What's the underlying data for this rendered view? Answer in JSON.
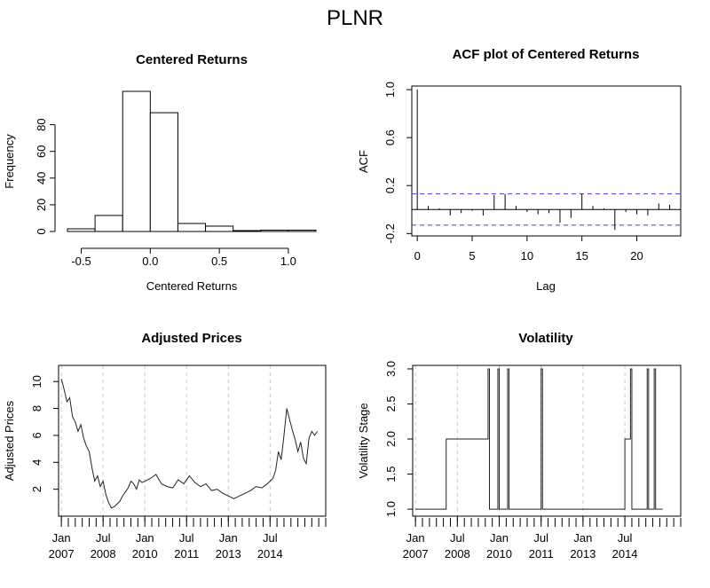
{
  "figure": {
    "title": "PLNR"
  },
  "chart_data": [
    {
      "type": "bar",
      "title": "Centered Returns",
      "xlabel": "Centered Returns",
      "ylabel": "Frequency",
      "xlim": [
        -0.6,
        1.2
      ],
      "ylim": [
        0,
        105
      ],
      "x_ticks": [
        -0.5,
        0.0,
        0.5,
        1.0
      ],
      "x_tick_labels": [
        "-0.5",
        "0.0",
        "0.5",
        "1.0"
      ],
      "y_ticks": [
        0,
        20,
        40,
        60,
        80
      ],
      "y_tick_labels": [
        "0",
        "20",
        "40",
        "60",
        "80"
      ],
      "bins": [
        {
          "x0": -0.6,
          "x1": -0.4,
          "count": 2
        },
        {
          "x0": -0.4,
          "x1": -0.2,
          "count": 12
        },
        {
          "x0": -0.2,
          "x1": 0.0,
          "count": 105
        },
        {
          "x0": 0.0,
          "x1": 0.2,
          "count": 89
        },
        {
          "x0": 0.2,
          "x1": 0.4,
          "count": 6
        },
        {
          "x0": 0.4,
          "x1": 0.6,
          "count": 4
        },
        {
          "x0": 0.6,
          "x1": 0.8,
          "count": 0
        },
        {
          "x0": 0.8,
          "x1": 1.0,
          "count": 1
        },
        {
          "x0": 1.0,
          "x1": 1.2,
          "count": 1
        }
      ]
    },
    {
      "type": "bar",
      "title": "ACF plot of Centered Returns",
      "xlabel": "Lag",
      "ylabel": "ACF",
      "xlim": [
        -0.5,
        24
      ],
      "ylim": [
        -0.22,
        1.03
      ],
      "x_ticks": [
        0,
        5,
        10,
        15,
        20
      ],
      "x_tick_labels": [
        "0",
        "5",
        "10",
        "15",
        "20"
      ],
      "y_ticks": [
        -0.2,
        0.2,
        0.6,
        1.0
      ],
      "y_tick_labels": [
        "-0.2",
        "0.2",
        "0.6",
        "1.0"
      ],
      "confidence_band": [
        -0.13,
        0.13
      ],
      "lags": [
        0,
        1,
        2,
        3,
        4,
        5,
        6,
        7,
        8,
        9,
        10,
        11,
        12,
        13,
        14,
        15,
        16,
        17,
        18,
        19,
        20,
        21,
        22,
        23
      ],
      "values": [
        1.0,
        0.03,
        0.01,
        -0.05,
        -0.03,
        -0.01,
        -0.05,
        0.12,
        0.13,
        0.03,
        -0.02,
        -0.04,
        -0.03,
        -0.11,
        -0.07,
        0.13,
        0.03,
        0.01,
        -0.17,
        -0.02,
        -0.04,
        -0.05,
        0.05,
        0.04
      ]
    },
    {
      "type": "line",
      "title": "Adjusted Prices",
      "xlabel": "",
      "ylabel": "Adjusted Prices",
      "xlim": [
        2006.9,
        2016.5
      ],
      "ylim": [
        0,
        11.2
      ],
      "x_ticks": [
        2007.0,
        2008.5,
        2010.0,
        2011.5,
        2013.0,
        2014.5
      ],
      "x_tick_labels": [
        [
          "Jan",
          "2007"
        ],
        [
          "Jul",
          "2008"
        ],
        [
          "Jan",
          "2010"
        ],
        [
          "Jul",
          "2011"
        ],
        [
          "Jan",
          "2013"
        ],
        [
          "Jul",
          "2014"
        ]
      ],
      "y_ticks": [
        2,
        4,
        6,
        8,
        10
      ],
      "y_tick_labels": [
        "2",
        "4",
        "6",
        "8",
        "10"
      ],
      "grid": "dashed vertical",
      "x": [
        2007.0,
        2007.1,
        2007.2,
        2007.3,
        2007.4,
        2007.5,
        2007.6,
        2007.7,
        2007.8,
        2007.9,
        2008.0,
        2008.1,
        2008.2,
        2008.3,
        2008.4,
        2008.5,
        2008.6,
        2008.7,
        2008.8,
        2008.9,
        2009.0,
        2009.1,
        2009.2,
        2009.3,
        2009.4,
        2009.5,
        2009.6,
        2009.7,
        2009.8,
        2009.9,
        2010.0,
        2010.2,
        2010.4,
        2010.6,
        2010.8,
        2011.0,
        2011.2,
        2011.4,
        2011.6,
        2011.8,
        2012.0,
        2012.2,
        2012.4,
        2012.6,
        2012.8,
        2013.0,
        2013.2,
        2013.4,
        2013.6,
        2013.8,
        2014.0,
        2014.2,
        2014.4,
        2014.6,
        2014.7,
        2014.8,
        2014.9,
        2015.0,
        2015.1,
        2015.2,
        2015.3,
        2015.4,
        2015.5,
        2015.6,
        2015.7,
        2015.8,
        2015.9,
        2016.0,
        2016.1,
        2016.2
      ],
      "y": [
        10.2,
        9.4,
        8.5,
        8.8,
        7.4,
        7.0,
        6.3,
        6.8,
        5.8,
        5.2,
        4.8,
        3.6,
        2.6,
        3.0,
        2.2,
        2.6,
        1.6,
        1.0,
        0.6,
        0.7,
        0.9,
        1.1,
        1.5,
        1.8,
        2.1,
        2.6,
        2.4,
        2.0,
        2.7,
        2.5,
        2.6,
        2.8,
        3.1,
        2.4,
        2.2,
        2.1,
        2.7,
        2.4,
        3.0,
        2.5,
        2.2,
        2.4,
        1.9,
        2.0,
        1.7,
        1.5,
        1.3,
        1.5,
        1.7,
        1.9,
        2.2,
        2.1,
        2.4,
        2.8,
        3.4,
        4.8,
        4.2,
        6.0,
        8.0,
        7.2,
        6.4,
        5.7,
        4.8,
        5.5,
        4.3,
        3.9,
        5.8,
        6.3,
        6.0,
        6.3
      ]
    },
    {
      "type": "line",
      "title": "Volatility",
      "xlabel": "",
      "ylabel": "Volatility Stage",
      "xlim": [
        2006.9,
        2016.5
      ],
      "ylim": [
        0.9,
        3.05
      ],
      "x_ticks": [
        2007.0,
        2008.5,
        2010.0,
        2011.5,
        2013.0,
        2014.5
      ],
      "x_tick_labels": [
        [
          "Jan",
          "2007"
        ],
        [
          "Jul",
          "2008"
        ],
        [
          "Jan",
          "2010"
        ],
        [
          "Jul",
          "2011"
        ],
        [
          "Jan",
          "2013"
        ],
        [
          "Jul",
          "2014"
        ]
      ],
      "y_ticks": [
        1.0,
        1.5,
        2.0,
        2.5,
        3.0
      ],
      "y_tick_labels": [
        "1.0",
        "1.5",
        "2.0",
        "2.5",
        "3.0"
      ],
      "grid": "dashed vertical",
      "x": [
        2007.0,
        2008.1,
        2008.1,
        2009.6,
        2009.6,
        2009.65,
        2009.65,
        2009.95,
        2009.95,
        2010.0,
        2010.0,
        2010.3,
        2010.3,
        2010.35,
        2010.35,
        2011.5,
        2011.5,
        2011.55,
        2011.55,
        2014.5,
        2014.5,
        2014.7,
        2014.7,
        2014.75,
        2014.75,
        2015.3,
        2015.3,
        2015.35,
        2015.35,
        2015.55,
        2015.55,
        2015.6,
        2015.6,
        2015.85
      ],
      "y": [
        1.0,
        1.0,
        2.0,
        2.0,
        3.0,
        3.0,
        1.0,
        1.0,
        3.0,
        3.0,
        1.0,
        1.0,
        3.0,
        3.0,
        1.0,
        1.0,
        3.0,
        3.0,
        1.0,
        1.0,
        2.0,
        2.0,
        3.0,
        3.0,
        1.0,
        1.0,
        3.0,
        3.0,
        1.0,
        1.0,
        3.0,
        3.0,
        1.0,
        1.0
      ]
    }
  ]
}
